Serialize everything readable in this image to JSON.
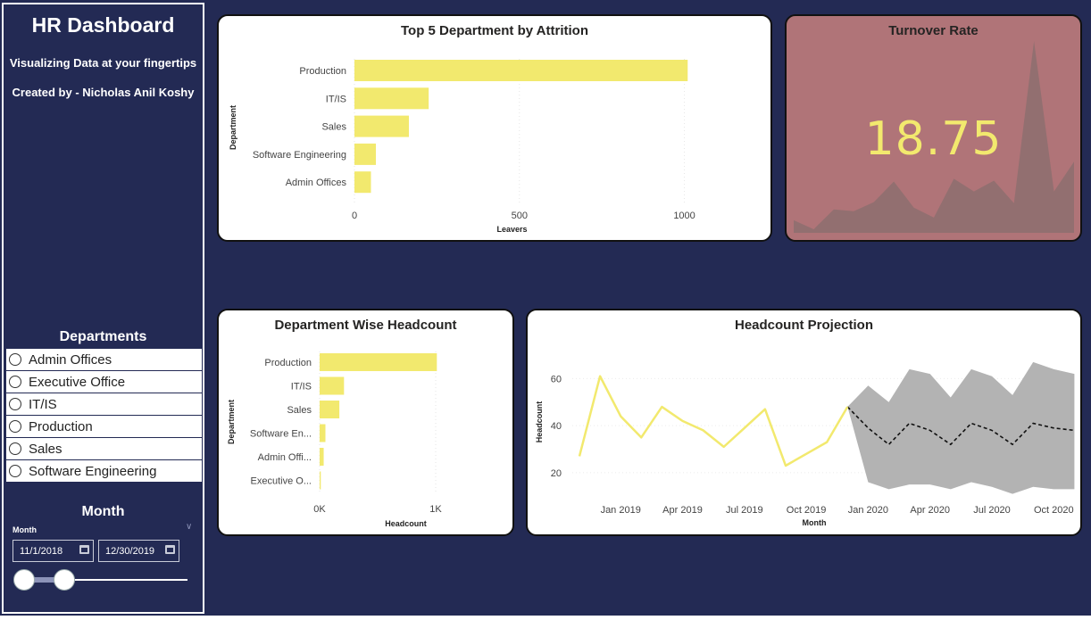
{
  "sidebar": {
    "title": "HR Dashboard",
    "subtitle": "Visualizing Data at your fingertips",
    "credit": "Created by - Nicholas Anil Koshy",
    "departments_title": "Departments",
    "departments": [
      {
        "label": "Admin Offices"
      },
      {
        "label": "Executive Office"
      },
      {
        "label": "IT/IS"
      },
      {
        "label": "Production"
      },
      {
        "label": "Sales"
      },
      {
        "label": "Software Engineering"
      }
    ],
    "month_title": "Month",
    "month_label": "Month",
    "start_date": "11/1/2018",
    "end_date": "12/30/2019"
  },
  "turnover": {
    "title": "Turnover Rate",
    "value": "18.75"
  },
  "colors": {
    "background": "#232a54",
    "bar": "#f2e96e",
    "turnover_card": "#b07478",
    "forecast_band": "#b3b3b3"
  },
  "chart_data": [
    {
      "id": "attrition",
      "type": "bar",
      "orientation": "horizontal",
      "title": "Top 5 Department by Attrition",
      "xlabel": "Leavers",
      "ylabel": "Department",
      "categories": [
        "Production",
        "IT/IS",
        "Sales",
        "Software Engineering",
        "Admin Offices"
      ],
      "values": [
        1010,
        225,
        165,
        65,
        50
      ],
      "xlim": [
        0,
        1150
      ],
      "xticks": [
        0,
        500,
        1000
      ],
      "xtick_labels": [
        "0",
        "500",
        "1000"
      ],
      "grid": true
    },
    {
      "id": "headcount",
      "type": "bar",
      "orientation": "horizontal",
      "title": "Department Wise Headcount",
      "xlabel": "Headcount",
      "ylabel": "Department",
      "categories": [
        "Production",
        "IT/IS",
        "Sales",
        "Software En...",
        "Admin Offi...",
        "Executive O..."
      ],
      "values": [
        1010,
        210,
        170,
        50,
        35,
        10
      ],
      "xlim": [
        0,
        1100
      ],
      "xticks": [
        0,
        1000
      ],
      "xtick_labels": [
        "0K",
        "1K"
      ],
      "grid": true
    },
    {
      "id": "projection",
      "type": "line",
      "title": "Headcount Projection",
      "xlabel": "Month",
      "ylabel": "Headcount",
      "ylim": [
        12,
        70
      ],
      "yticks": [
        20,
        40,
        60
      ],
      "xtick_labels": [
        "Jan 2019",
        "Apr 2019",
        "Jul 2019",
        "Oct 2019",
        "Jan 2020",
        "Apr 2020",
        "Jul 2020",
        "Oct 2020"
      ],
      "actual": {
        "x": [
          "2018-11",
          "2018-12",
          "2019-01",
          "2019-02",
          "2019-03",
          "2019-04",
          "2019-05",
          "2019-06",
          "2019-07",
          "2019-08",
          "2019-09",
          "2019-10",
          "2019-11",
          "2019-12"
        ],
        "y": [
          27,
          61,
          44,
          35,
          48,
          42,
          38,
          31,
          39,
          47,
          23,
          28,
          33,
          48
        ]
      },
      "forecast": {
        "x": [
          "2019-12",
          "2020-01",
          "2020-02",
          "2020-03",
          "2020-04",
          "2020-05",
          "2020-06",
          "2020-07",
          "2020-08",
          "2020-09",
          "2020-10",
          "2020-11"
        ],
        "y": [
          48,
          39,
          32,
          41,
          38,
          32,
          41,
          38,
          32,
          41,
          39,
          38
        ],
        "upper": [
          48,
          57,
          50,
          64,
          62,
          52,
          64,
          61,
          53,
          67,
          64,
          62
        ],
        "lower": [
          48,
          16,
          13,
          15,
          15,
          13,
          16,
          14,
          11,
          14,
          13,
          13
        ]
      }
    },
    {
      "id": "turnover_spark",
      "type": "area",
      "title": "",
      "values": [
        14,
        4,
        26,
        24,
        34,
        57,
        28,
        17,
        60,
        46,
        58,
        33,
        213,
        46,
        79
      ]
    }
  ]
}
